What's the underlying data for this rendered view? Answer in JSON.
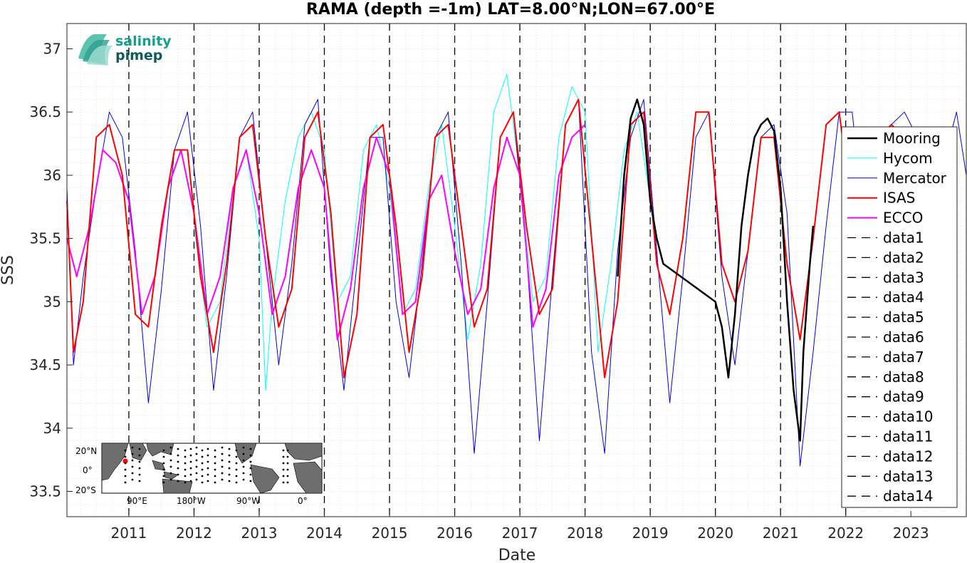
{
  "chart_data": {
    "type": "line",
    "title": "RAMA (depth =-1m) LAT=8.00°N;LON=67.00°E",
    "xlabel": "Date",
    "ylabel": "SSS",
    "ylim": [
      33.3,
      37.2
    ],
    "xlim": [
      2010.05,
      2023.85
    ],
    "yticks": [
      33.5,
      34,
      34.5,
      35,
      35.5,
      36,
      36.5,
      37
    ],
    "ytick_labels": [
      "33.5",
      "34",
      "34.5",
      "35",
      "35.5",
      "36",
      "36.5",
      "37"
    ],
    "xticks": [
      2011,
      2012,
      2013,
      2014,
      2015,
      2016,
      2017,
      2018,
      2019,
      2020,
      2021,
      2022,
      2023
    ],
    "xtick_labels": [
      "2011",
      "2012",
      "2013",
      "2014",
      "2015",
      "2016",
      "2017",
      "2018",
      "2019",
      "2020",
      "2021",
      "2022",
      "2023"
    ],
    "grid": true,
    "legend_position": "right",
    "vlines": [
      2011,
      2012,
      2013,
      2014,
      2015,
      2016,
      2017,
      2018,
      2019,
      2020,
      2021,
      2022
    ],
    "series": [
      {
        "name": "Mooring",
        "color": "#000000",
        "width": 2.5,
        "x": [
          2018.5,
          2018.6,
          2018.7,
          2018.8,
          2018.9,
          2019.0,
          2019.1,
          2019.2,
          2020.0,
          2020.1,
          2020.2,
          2020.3,
          2020.4,
          2020.5,
          2020.6,
          2020.7,
          2020.8,
          2020.9,
          2021.0,
          2021.1,
          2021.2,
          2021.3,
          2021.35,
          2021.45,
          2021.5
        ],
        "y": [
          35.2,
          36.0,
          36.45,
          36.6,
          36.4,
          35.8,
          35.5,
          35.3,
          35.0,
          34.8,
          34.4,
          34.9,
          35.6,
          36.0,
          36.3,
          36.4,
          36.45,
          36.35,
          35.9,
          35.0,
          34.3,
          33.9,
          34.6,
          35.3,
          35.6
        ]
      },
      {
        "name": "Hycom",
        "color": "#00ffff",
        "width": 1,
        "x": [
          2012.0,
          2012.2,
          2012.4,
          2012.6,
          2012.8,
          2013.0,
          2013.1,
          2013.2,
          2013.4,
          2013.6,
          2013.8,
          2014.0,
          2014.2,
          2014.4,
          2014.6,
          2014.8,
          2015.0,
          2015.2,
          2015.4,
          2015.6,
          2015.8,
          2016.0,
          2016.2,
          2016.4,
          2016.6,
          2016.8,
          2017.0,
          2017.2,
          2017.4,
          2017.6,
          2017.8,
          2018.0,
          2018.2,
          2018.4,
          2018.6,
          2018.8,
          2019.0
        ],
        "y": [
          35.6,
          34.8,
          35.0,
          35.9,
          36.2,
          35.5,
          34.3,
          35.0,
          35.8,
          36.3,
          36.5,
          36.2,
          35.0,
          35.2,
          36.2,
          36.4,
          35.9,
          34.9,
          35.1,
          35.9,
          36.4,
          35.6,
          34.7,
          35.3,
          36.5,
          36.8,
          36.0,
          35.0,
          35.2,
          36.3,
          36.7,
          36.5,
          34.6,
          35.3,
          36.2,
          36.5,
          35.8
        ]
      },
      {
        "name": "Mercator",
        "color": "#0000dd",
        "width": 1,
        "x": [
          2010.05,
          2010.15,
          2010.3,
          2010.5,
          2010.7,
          2010.9,
          2011.1,
          2011.3,
          2011.5,
          2011.7,
          2011.9,
          2012.1,
          2012.3,
          2012.5,
          2012.7,
          2012.9,
          2013.1,
          2013.3,
          2013.5,
          2013.7,
          2013.9,
          2014.1,
          2014.3,
          2014.5,
          2014.7,
          2014.9,
          2015.1,
          2015.3,
          2015.5,
          2015.7,
          2015.9,
          2016.1,
          2016.3,
          2016.5,
          2016.7,
          2016.9,
          2017.1,
          2017.3,
          2017.5,
          2017.7,
          2017.9,
          2018.1,
          2018.3,
          2018.5,
          2018.7,
          2018.9,
          2019.1,
          2019.3,
          2019.5,
          2019.7,
          2019.9,
          2020.1,
          2020.3,
          2020.5,
          2020.7,
          2020.9,
          2021.1,
          2021.3,
          2021.5,
          2021.7,
          2021.9,
          2022.1,
          2022.3,
          2022.5,
          2022.7,
          2022.9,
          2023.1,
          2023.3,
          2023.5,
          2023.7,
          2023.85
        ],
        "y": [
          35.9,
          34.5,
          35.2,
          35.9,
          36.5,
          36.3,
          35.4,
          34.2,
          35.1,
          36.2,
          36.5,
          35.6,
          34.3,
          35.2,
          36.3,
          36.5,
          35.5,
          34.5,
          35.3,
          36.4,
          36.6,
          35.2,
          34.3,
          35.3,
          36.3,
          36.3,
          35.0,
          34.4,
          35.3,
          36.3,
          36.5,
          35.3,
          33.8,
          35.0,
          36.3,
          36.5,
          35.4,
          33.9,
          35.2,
          36.4,
          36.6,
          34.6,
          33.8,
          35.4,
          36.3,
          36.6,
          35.4,
          34.2,
          35.2,
          36.3,
          36.5,
          35.2,
          34.5,
          35.4,
          36.3,
          36.4,
          35.7,
          33.7,
          34.6,
          35.6,
          36.5,
          36.5,
          35.5,
          36.2,
          36.4,
          36.5,
          36.3,
          35.8,
          36.1,
          36.5,
          36.0
        ]
      },
      {
        "name": "ISAS",
        "color": "#ff0000",
        "width": 2,
        "x": [
          2010.05,
          2010.15,
          2010.3,
          2010.5,
          2010.7,
          2010.9,
          2011.1,
          2011.3,
          2011.5,
          2011.7,
          2011.9,
          2012.1,
          2012.3,
          2012.5,
          2012.7,
          2012.9,
          2013.1,
          2013.3,
          2013.5,
          2013.7,
          2013.9,
          2014.1,
          2014.3,
          2014.5,
          2014.7,
          2014.9,
          2015.1,
          2015.3,
          2015.5,
          2015.7,
          2015.9,
          2016.1,
          2016.3,
          2016.5,
          2016.7,
          2016.9,
          2017.1,
          2017.3,
          2017.5,
          2017.7,
          2017.9,
          2018.1,
          2018.3,
          2018.5,
          2018.7,
          2018.9,
          2019.1,
          2019.3,
          2019.5,
          2019.7,
          2019.9,
          2020.1,
          2020.3,
          2020.5,
          2020.7,
          2020.9,
          2021.1,
          2021.3,
          2021.5,
          2021.7,
          2021.9,
          2022.1,
          2022.3,
          2022.5,
          2022.7,
          2022.9,
          2023.1
        ],
        "y": [
          35.8,
          34.6,
          35.0,
          36.3,
          36.4,
          36.0,
          34.9,
          34.8,
          35.6,
          36.2,
          36.2,
          35.2,
          34.6,
          35.3,
          36.3,
          36.4,
          35.5,
          34.8,
          35.1,
          36.3,
          36.5,
          35.7,
          34.4,
          34.9,
          36.3,
          36.4,
          35.6,
          34.6,
          35.2,
          36.3,
          36.4,
          35.6,
          34.8,
          35.1,
          36.3,
          36.5,
          35.6,
          34.9,
          35.1,
          36.4,
          36.6,
          35.5,
          34.4,
          35.0,
          36.4,
          36.5,
          35.3,
          34.9,
          35.5,
          36.5,
          36.5,
          35.3,
          35.0,
          35.4,
          36.3,
          36.3,
          35.3,
          34.7,
          35.5,
          36.4,
          36.5,
          35.7,
          36.0,
          36.3,
          36.4,
          36.3,
          36.1
        ]
      },
      {
        "name": "ECCO",
        "color": "#ff00ff",
        "width": 2,
        "x": [
          2010.05,
          2010.2,
          2010.4,
          2010.6,
          2010.8,
          2011.0,
          2011.2,
          2011.4,
          2011.6,
          2011.8,
          2012.0,
          2012.2,
          2012.4,
          2012.6,
          2012.8,
          2013.0,
          2013.2,
          2013.4,
          2013.6,
          2013.8,
          2014.0,
          2014.2,
          2014.4,
          2014.6,
          2014.8,
          2015.0,
          2015.2,
          2015.4,
          2015.6,
          2015.8,
          2016.0,
          2016.2,
          2016.4,
          2016.6,
          2016.8,
          2017.0,
          2017.2,
          2017.4,
          2017.6,
          2017.8,
          2018.0
        ],
        "y": [
          35.5,
          35.2,
          35.6,
          36.2,
          36.1,
          35.8,
          34.9,
          35.2,
          35.9,
          36.2,
          35.7,
          34.9,
          35.2,
          35.9,
          36.2,
          35.7,
          34.9,
          35.2,
          35.9,
          36.2,
          35.9,
          34.7,
          35.1,
          35.9,
          36.3,
          36.0,
          34.9,
          35.0,
          35.8,
          36.0,
          35.4,
          34.9,
          35.1,
          35.9,
          36.3,
          36.0,
          34.8,
          35.1,
          36.0,
          36.3,
          36.4
        ]
      }
    ],
    "legend_entries": [
      "Mooring",
      "Hycom",
      "Mercator",
      "ISAS",
      "ECCO",
      "data1",
      "data2",
      "data3",
      "data4",
      "data5",
      "data6",
      "data7",
      "data8",
      "data9",
      "data10",
      "data11",
      "data12",
      "data13",
      "data14"
    ],
    "inset_map": {
      "lat_labels": [
        "20°N",
        "0°",
        "20°S"
      ],
      "lon_labels": [
        "90°E",
        "180°W",
        "90°W",
        "0°"
      ]
    },
    "logo": {
      "line1": "salinity",
      "line2": "pimep"
    }
  }
}
